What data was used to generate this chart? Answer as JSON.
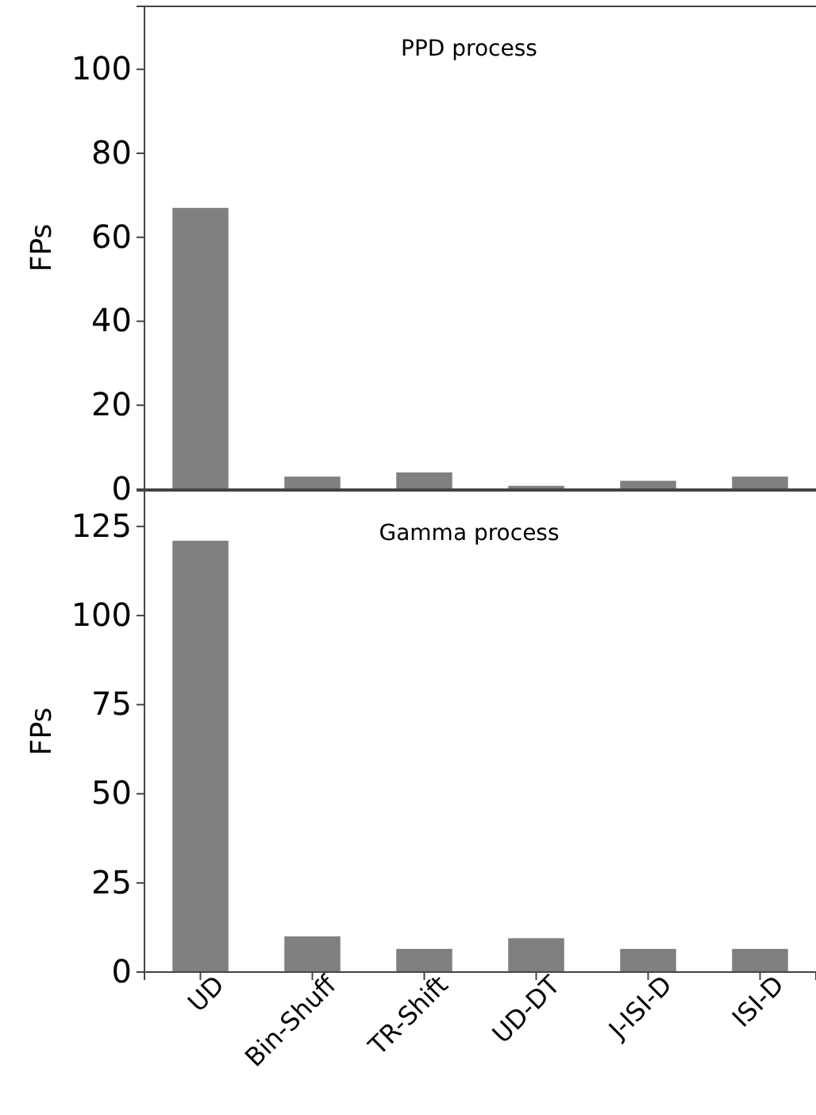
{
  "chart_data": [
    {
      "type": "bar",
      "title": "PPD process",
      "ylabel": "FPs",
      "categories": [
        null,
        null,
        null,
        null,
        null,
        null
      ],
      "values": [
        67,
        3,
        4,
        0.8,
        2,
        3
      ],
      "color": "#808080",
      "ylim": [
        0,
        115
      ],
      "yticks": [
        0,
        20,
        40,
        60,
        80,
        100
      ],
      "tick_labels": "y"
    },
    {
      "type": "bar",
      "title": "Gamma process",
      "ylabel": "FPs",
      "categories": [
        "UD",
        "Bin-Shuff",
        "TR-Shift",
        "UD-DT",
        "J-ISI-D",
        "ISI-D"
      ],
      "values": [
        121,
        10,
        6.5,
        9.5,
        6.5,
        6.5
      ],
      "color": "#808080",
      "ylim": [
        0,
        135
      ],
      "yticks": [
        0,
        25,
        50,
        75,
        100,
        125
      ]
    }
  ]
}
